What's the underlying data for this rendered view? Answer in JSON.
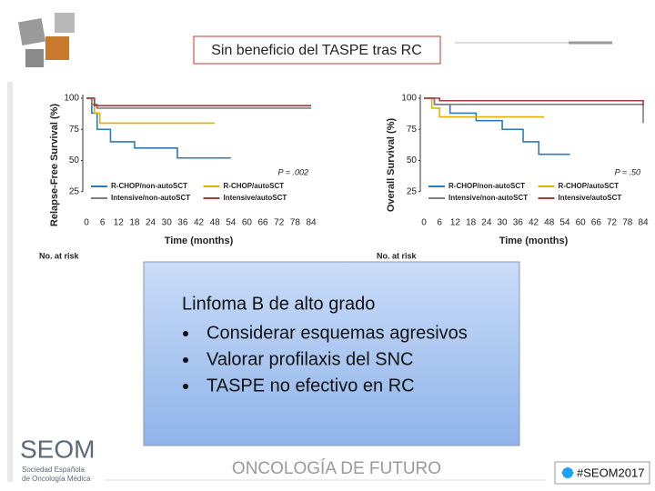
{
  "slide": {
    "title": "Sin beneficio del TASPE tras RC",
    "box": {
      "heading": "Linfoma B de alto grado",
      "bullets": [
        "Considerar esquemas agresivos",
        "Valorar profilaxis del SNC",
        "TASPE no efectivo en RC"
      ]
    },
    "footer": {
      "logo": "SEOM",
      "society": [
        "Sociedad Española",
        "de Oncología Médica"
      ],
      "tagline": "ONCOLOGÍA DE FUTURO",
      "hashtag": "#SEOM2017"
    }
  },
  "chart_data": [
    {
      "type": "step",
      "ylabel": "Relapse-Free Survival (%)",
      "xlabel": "Time (months)",
      "annotation": "P = .002",
      "risk_label": "No. at risk",
      "xlim": [
        0,
        84
      ],
      "ylim": [
        0,
        100
      ],
      "xticks": [
        0,
        6,
        12,
        18,
        24,
        30,
        36,
        42,
        48,
        54,
        60,
        66,
        72,
        78,
        84
      ],
      "yticks": [
        25,
        50,
        75,
        100
      ],
      "series": [
        {
          "name": "R-CHOP/non-autoSCT",
          "color": "#2b7bb9",
          "x": [
            0,
            2,
            4,
            9,
            18,
            34,
            54
          ],
          "values": [
            100,
            88,
            75,
            65,
            60,
            52,
            52
          ]
        },
        {
          "name": "R-CHOP/autoSCT",
          "color": "#e2b100",
          "x": [
            0,
            3,
            5,
            48
          ],
          "values": [
            100,
            88,
            80,
            80
          ]
        },
        {
          "name": "Intensive/non-autoSCT",
          "color": "#7f7f7f",
          "x": [
            0,
            2,
            4,
            84
          ],
          "values": [
            100,
            95,
            92,
            92
          ]
        },
        {
          "name": "Intensive/autoSCT",
          "color": "#a33a3a",
          "x": [
            0,
            3,
            84
          ],
          "values": [
            100,
            94,
            94
          ]
        }
      ]
    },
    {
      "type": "step",
      "ylabel": "Overall Survival (%)",
      "xlabel": "Time (months)",
      "annotation": "P = .50",
      "risk_label": "No. at risk",
      "xlim": [
        0,
        84
      ],
      "ylim": [
        0,
        100
      ],
      "xticks": [
        0,
        6,
        12,
        18,
        24,
        30,
        36,
        42,
        48,
        54,
        60,
        66,
        72,
        78,
        84
      ],
      "yticks": [
        25,
        50,
        75,
        100
      ],
      "series": [
        {
          "name": "R-CHOP/non-autoSCT",
          "color": "#2b7bb9",
          "x": [
            0,
            4,
            10,
            20,
            30,
            38,
            44,
            56
          ],
          "values": [
            100,
            95,
            88,
            82,
            75,
            65,
            55,
            55
          ]
        },
        {
          "name": "R-CHOP/autoSCT",
          "color": "#e2b100",
          "x": [
            0,
            3,
            6,
            46
          ],
          "values": [
            100,
            92,
            85,
            85
          ]
        },
        {
          "name": "Intensive/non-autoSCT",
          "color": "#7f7f7f",
          "x": [
            0,
            4,
            78,
            84
          ],
          "values": [
            100,
            95,
            95,
            80
          ]
        },
        {
          "name": "Intensive/autoSCT",
          "color": "#a33a3a",
          "x": [
            0,
            6,
            84
          ],
          "values": [
            100,
            98,
            94
          ]
        }
      ]
    }
  ]
}
